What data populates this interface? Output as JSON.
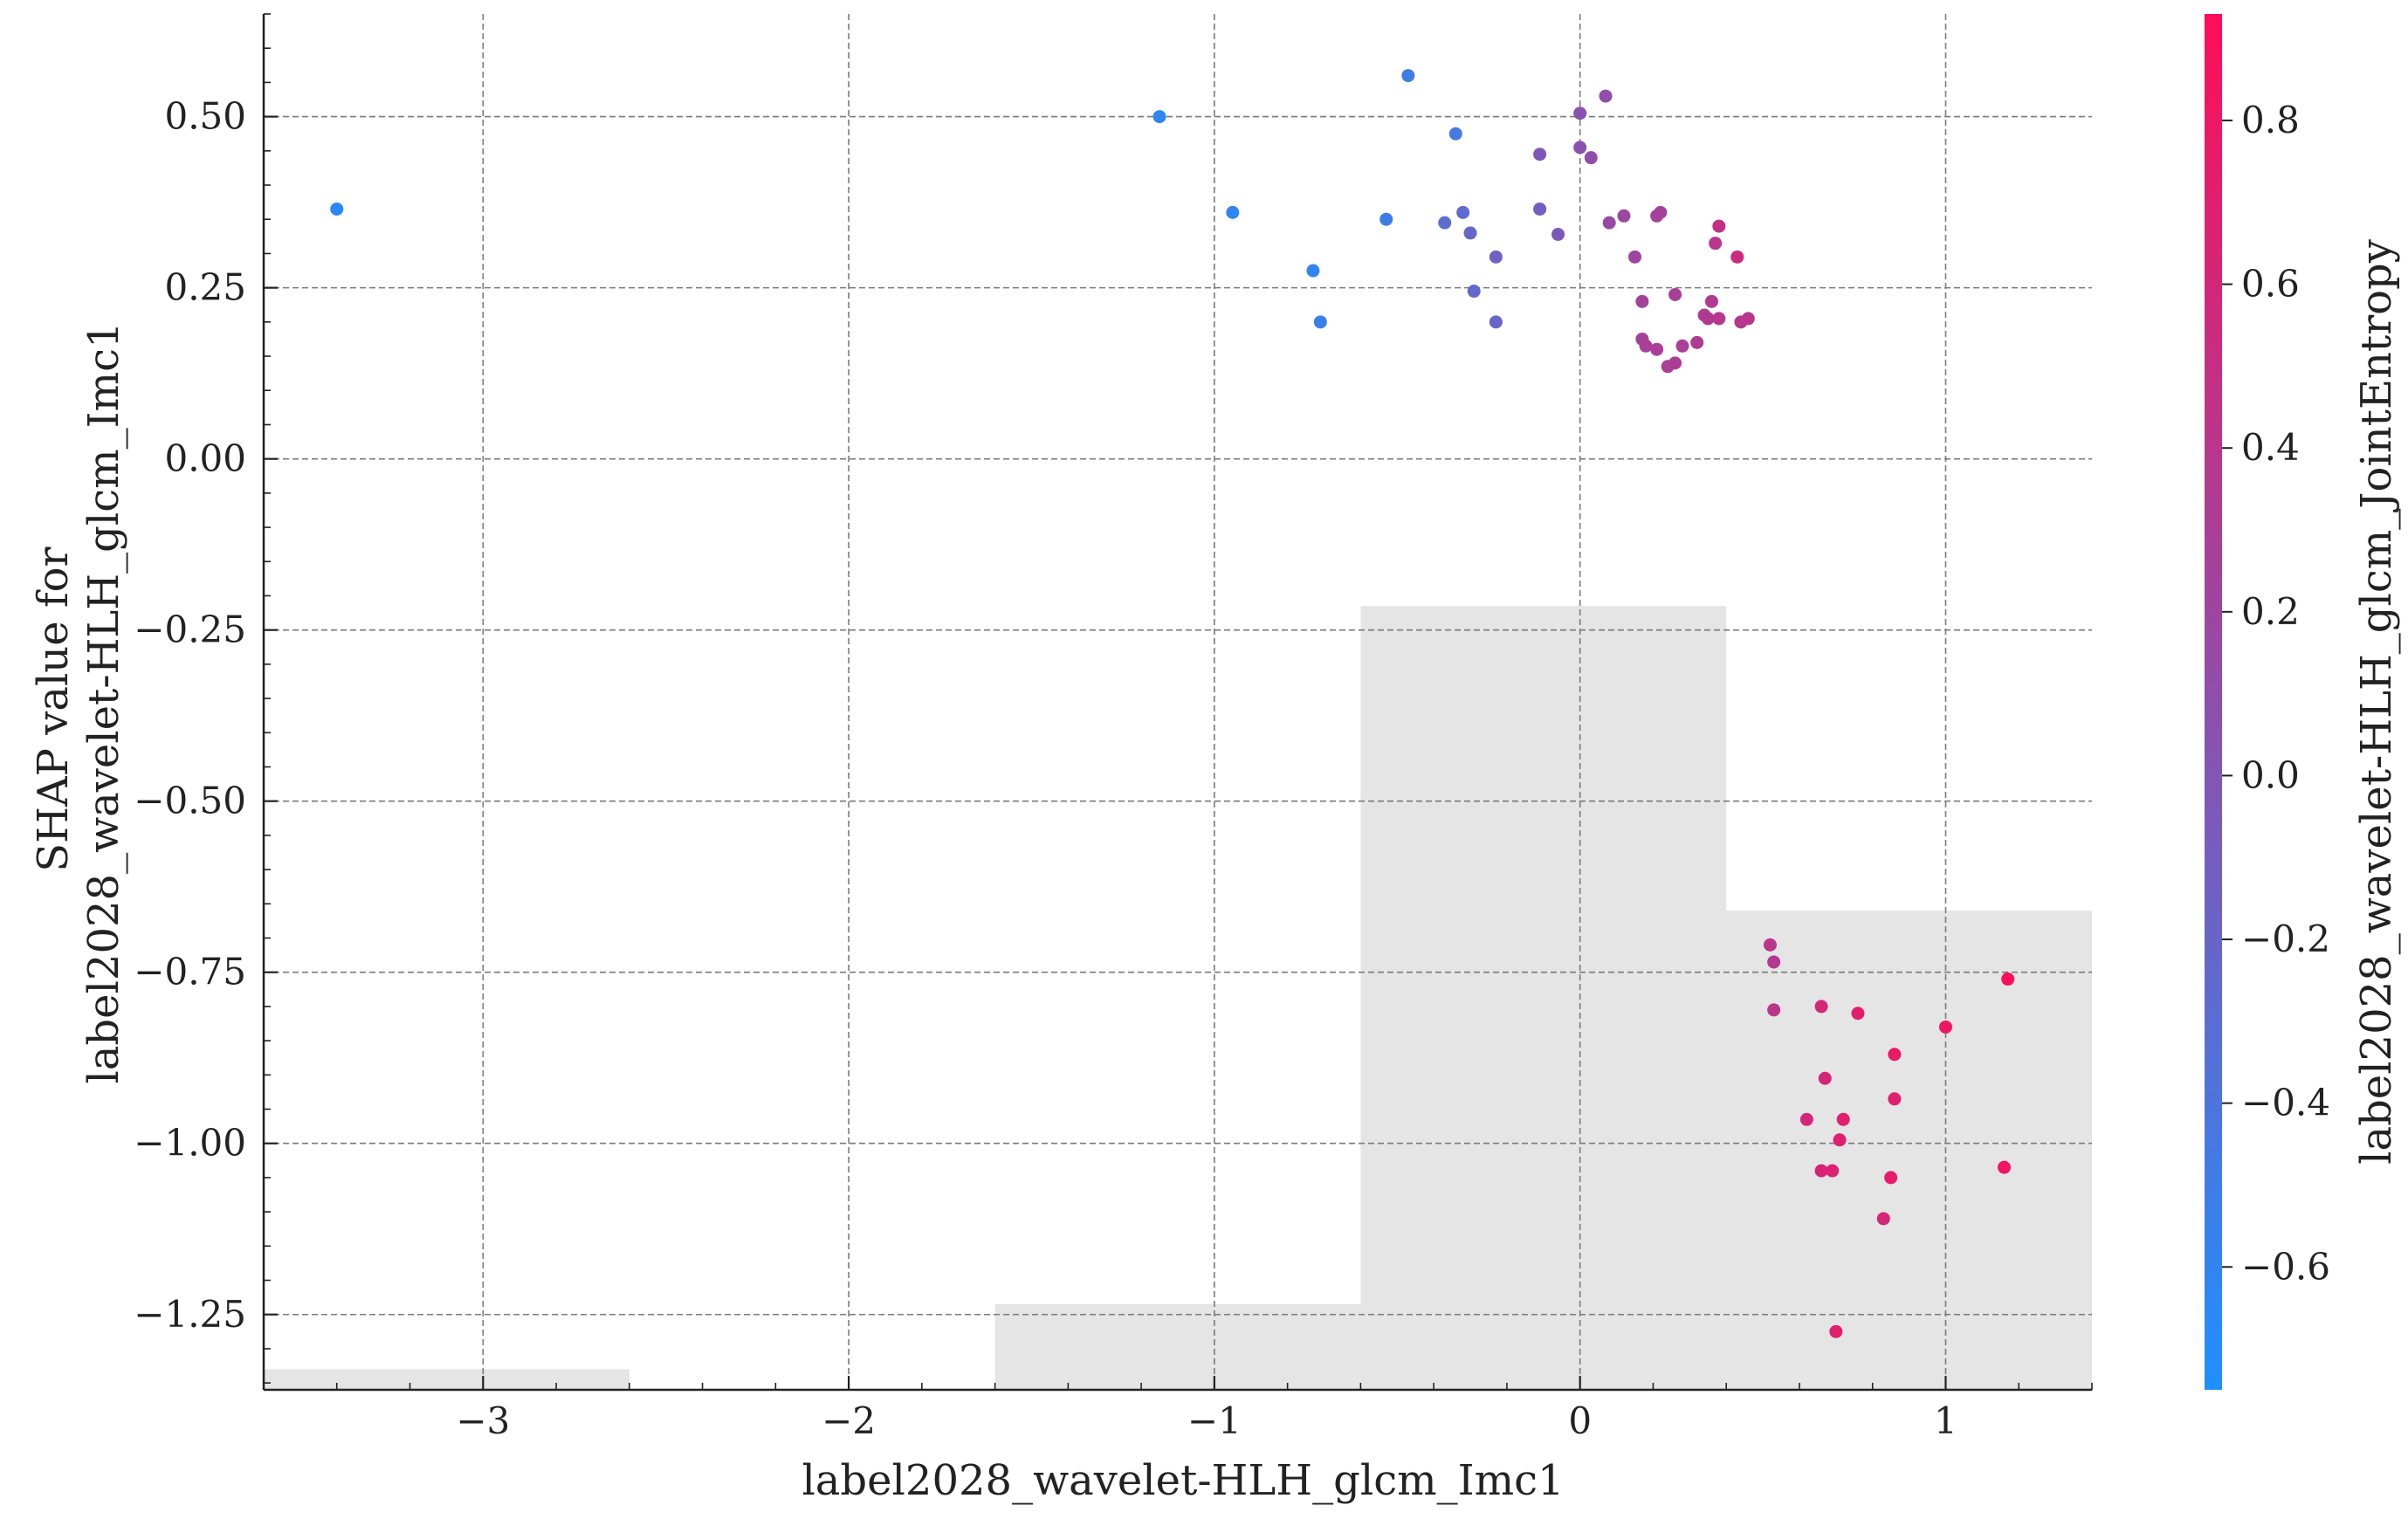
{
  "chart_data": {
    "type": "scatter",
    "title": "",
    "xlabel": "label2028_wavelet-HLH_glcm_Imc1",
    "ylabel": "SHAP value for\nlabel2028_wavelet-HLH_glcm_Imc1",
    "xlim": [
      -3.6,
      1.4
    ],
    "ylim": [
      -1.36,
      0.65
    ],
    "xticks": [
      -3,
      -2,
      -1,
      0,
      1
    ],
    "xtick_labels": [
      "−3",
      "−2",
      "−1",
      "0",
      "1"
    ],
    "yticks": [
      0.5,
      0.25,
      0.0,
      -0.25,
      -0.5,
      -0.75,
      -1.0,
      -1.25
    ],
    "ytick_labels": [
      "0.50",
      "0.25",
      "0.00",
      "−0.25",
      "−0.50",
      "−0.75",
      "−1.00",
      "−1.25"
    ],
    "grid": true,
    "colorbar": {
      "label": "label2028_wavelet-HLH_glcm_JointEntropy",
      "range": [
        -0.75,
        0.93
      ],
      "ticks": [
        0.8,
        0.6,
        0.4,
        0.2,
        0.0,
        -0.2,
        -0.4,
        -0.6
      ],
      "tick_labels": [
        "0.8",
        "0.6",
        "0.4",
        "0.2",
        "0.0",
        "−0.2",
        "−0.4",
        "−0.6"
      ],
      "colors": [
        "#1e90ff",
        "#ff0d57"
      ]
    },
    "histogram": {
      "color": "#e5e5e5",
      "bins": [
        {
          "x0": -3.6,
          "x1": -2.6,
          "top": -1.33
        },
        {
          "x0": -1.6,
          "x1": -0.6,
          "top": -1.235
        },
        {
          "x0": -0.6,
          "x1": 0.4,
          "top": -0.215
        },
        {
          "x0": 0.4,
          "x1": 1.4,
          "top": -0.66
        }
      ]
    },
    "points": [
      {
        "x": -3.4,
        "y": 0.365,
        "c": -0.66
      },
      {
        "x": -1.15,
        "y": 0.5,
        "c": -0.62
      },
      {
        "x": -0.95,
        "y": 0.36,
        "c": -0.62
      },
      {
        "x": -0.73,
        "y": 0.275,
        "c": -0.6
      },
      {
        "x": -0.71,
        "y": 0.2,
        "c": -0.55
      },
      {
        "x": -0.53,
        "y": 0.35,
        "c": -0.5
      },
      {
        "x": -0.47,
        "y": 0.56,
        "c": -0.5
      },
      {
        "x": -0.34,
        "y": 0.475,
        "c": -0.45
      },
      {
        "x": -0.37,
        "y": 0.345,
        "c": -0.3
      },
      {
        "x": -0.32,
        "y": 0.36,
        "c": -0.27
      },
      {
        "x": -0.3,
        "y": 0.33,
        "c": -0.22
      },
      {
        "x": -0.29,
        "y": 0.245,
        "c": -0.25
      },
      {
        "x": -0.23,
        "y": 0.2,
        "c": -0.2
      },
      {
        "x": -0.23,
        "y": 0.295,
        "c": -0.15
      },
      {
        "x": -0.11,
        "y": 0.365,
        "c": -0.12
      },
      {
        "x": -0.11,
        "y": 0.445,
        "c": -0.05
      },
      {
        "x": -0.06,
        "y": 0.328,
        "c": -0.05
      },
      {
        "x": 0.0,
        "y": 0.505,
        "c": 0.05
      },
      {
        "x": 0.0,
        "y": 0.455,
        "c": 0.05
      },
      {
        "x": 0.03,
        "y": 0.44,
        "c": 0.1
      },
      {
        "x": 0.07,
        "y": 0.53,
        "c": 0.1
      },
      {
        "x": 0.08,
        "y": 0.345,
        "c": 0.15
      },
      {
        "x": 0.12,
        "y": 0.355,
        "c": 0.18
      },
      {
        "x": 0.15,
        "y": 0.295,
        "c": 0.2
      },
      {
        "x": 0.17,
        "y": 0.23,
        "c": 0.25
      },
      {
        "x": 0.17,
        "y": 0.175,
        "c": 0.25
      },
      {
        "x": 0.18,
        "y": 0.165,
        "c": 0.28
      },
      {
        "x": 0.21,
        "y": 0.16,
        "c": 0.3
      },
      {
        "x": 0.21,
        "y": 0.355,
        "c": 0.25
      },
      {
        "x": 0.22,
        "y": 0.36,
        "c": 0.25
      },
      {
        "x": 0.24,
        "y": 0.135,
        "c": 0.3
      },
      {
        "x": 0.26,
        "y": 0.24,
        "c": 0.28
      },
      {
        "x": 0.26,
        "y": 0.14,
        "c": 0.32
      },
      {
        "x": 0.28,
        "y": 0.165,
        "c": 0.3
      },
      {
        "x": 0.32,
        "y": 0.17,
        "c": 0.33
      },
      {
        "x": 0.34,
        "y": 0.21,
        "c": 0.33
      },
      {
        "x": 0.35,
        "y": 0.205,
        "c": 0.35
      },
      {
        "x": 0.36,
        "y": 0.23,
        "c": 0.35
      },
      {
        "x": 0.37,
        "y": 0.315,
        "c": 0.4
      },
      {
        "x": 0.38,
        "y": 0.205,
        "c": 0.4
      },
      {
        "x": 0.38,
        "y": 0.34,
        "c": 0.5
      },
      {
        "x": 0.43,
        "y": 0.295,
        "c": 0.55
      },
      {
        "x": 0.44,
        "y": 0.2,
        "c": 0.38
      },
      {
        "x": 0.46,
        "y": 0.205,
        "c": 0.4
      },
      {
        "x": 0.52,
        "y": -0.71,
        "c": 0.4
      },
      {
        "x": 0.53,
        "y": -0.735,
        "c": 0.38
      },
      {
        "x": 0.53,
        "y": -0.805,
        "c": 0.42
      },
      {
        "x": 0.62,
        "y": -0.965,
        "c": 0.6
      },
      {
        "x": 0.66,
        "y": -0.8,
        "c": 0.6
      },
      {
        "x": 0.66,
        "y": -1.04,
        "c": 0.65
      },
      {
        "x": 0.67,
        "y": -0.905,
        "c": 0.62
      },
      {
        "x": 0.69,
        "y": -1.04,
        "c": 0.68
      },
      {
        "x": 0.7,
        "y": -1.275,
        "c": 0.7
      },
      {
        "x": 0.71,
        "y": -0.995,
        "c": 0.7
      },
      {
        "x": 0.72,
        "y": -0.965,
        "c": 0.7
      },
      {
        "x": 0.76,
        "y": -0.81,
        "c": 0.72
      },
      {
        "x": 0.83,
        "y": -1.11,
        "c": 0.62
      },
      {
        "x": 0.85,
        "y": -1.05,
        "c": 0.75
      },
      {
        "x": 0.86,
        "y": -0.87,
        "c": 0.78
      },
      {
        "x": 0.86,
        "y": -0.935,
        "c": 0.7
      },
      {
        "x": 1.0,
        "y": -0.83,
        "c": 0.82
      },
      {
        "x": 1.16,
        "y": -1.035,
        "c": 0.82
      },
      {
        "x": 1.17,
        "y": -0.76,
        "c": 0.9
      }
    ]
  }
}
